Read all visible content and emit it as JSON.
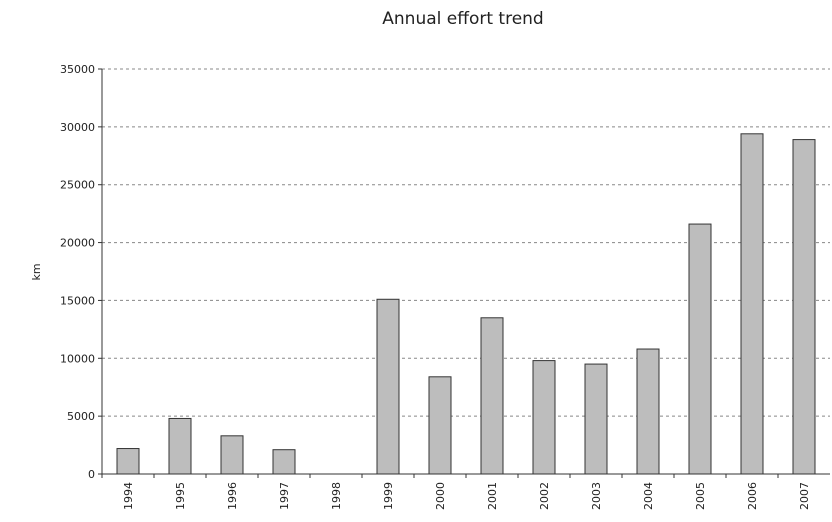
{
  "chart_data": {
    "type": "bar",
    "title": "Annual effort trend",
    "xlabel": "",
    "ylabel": "km",
    "categories": [
      "1994",
      "1995",
      "1996",
      "1997",
      "1998",
      "1999",
      "2000",
      "2001",
      "2002",
      "2003",
      "2004",
      "2005",
      "2006",
      "2007"
    ],
    "values": [
      2200,
      4800,
      3300,
      2100,
      0,
      15100,
      8400,
      13500,
      9800,
      9500,
      10800,
      21600,
      29400,
      28900
    ],
    "ylim": [
      0,
      35000
    ],
    "yticks": [
      "0",
      "5000",
      "10000",
      "15000",
      "20000",
      "25000",
      "30000",
      "35000"
    ],
    "grid": true,
    "bar_color": "#bdbdbd",
    "bar_edge_color": "#333333"
  }
}
